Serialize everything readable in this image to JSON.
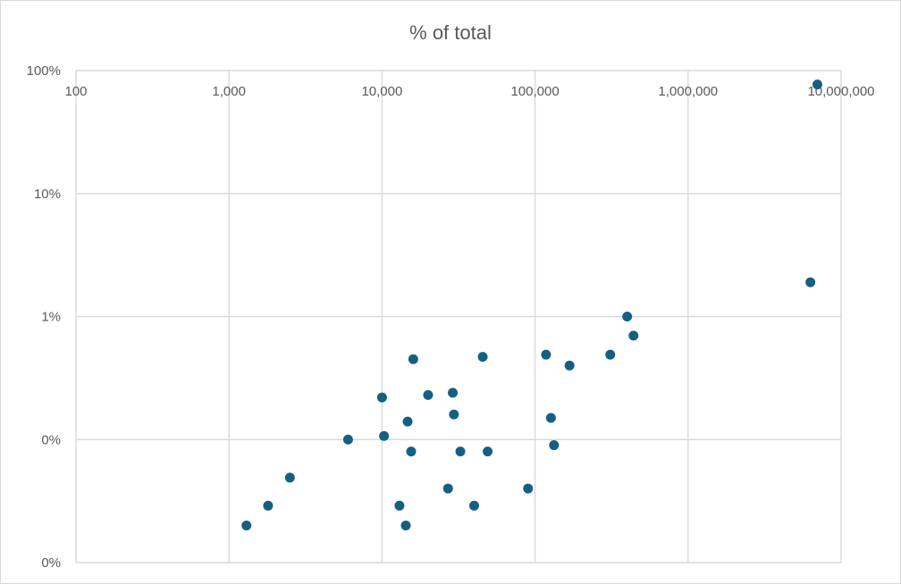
{
  "chart_data": {
    "type": "scatter",
    "title": "% of total",
    "xlabel": "",
    "ylabel": "",
    "x_scale": "log",
    "y_scale": "log",
    "xlim": [
      100,
      10000000
    ],
    "ylim": [
      0.0001,
      1
    ],
    "grid": true,
    "x_ticks": [
      {
        "value": 100,
        "label": "100"
      },
      {
        "value": 1000,
        "label": "1,000"
      },
      {
        "value": 10000,
        "label": "10,000"
      },
      {
        "value": 100000,
        "label": "100,000"
      },
      {
        "value": 1000000,
        "label": "1,000,000"
      },
      {
        "value": 10000000,
        "label": "10,000,000"
      }
    ],
    "y_ticks": [
      {
        "value": 1,
        "label": "100%"
      },
      {
        "value": 0.1,
        "label": "10%"
      },
      {
        "value": 0.01,
        "label": "1%"
      },
      {
        "value": 0.001,
        "label": "0%"
      },
      {
        "value": 0.0001,
        "label": "0%"
      }
    ],
    "marker_color": "#156082",
    "gridline_color": "#d9d9d9",
    "series": [
      {
        "points": [
          {
            "x": 1300,
            "y": 0.0002
          },
          {
            "x": 1800,
            "y": 0.00029
          },
          {
            "x": 2500,
            "y": 0.00049
          },
          {
            "x": 6000,
            "y": 0.001
          },
          {
            "x": 10000,
            "y": 0.0022
          },
          {
            "x": 10300,
            "y": 0.00107
          },
          {
            "x": 13000,
            "y": 0.00029
          },
          {
            "x": 14300,
            "y": 0.0002
          },
          {
            "x": 14700,
            "y": 0.0014
          },
          {
            "x": 15500,
            "y": 0.0008
          },
          {
            "x": 16000,
            "y": 0.0045
          },
          {
            "x": 20000,
            "y": 0.0023
          },
          {
            "x": 27000,
            "y": 0.0004
          },
          {
            "x": 29000,
            "y": 0.0024
          },
          {
            "x": 29500,
            "y": 0.0016
          },
          {
            "x": 32500,
            "y": 0.0008
          },
          {
            "x": 40000,
            "y": 0.00029
          },
          {
            "x": 45500,
            "y": 0.0047
          },
          {
            "x": 49000,
            "y": 0.0008
          },
          {
            "x": 90000,
            "y": 0.0004
          },
          {
            "x": 118000,
            "y": 0.0049
          },
          {
            "x": 127000,
            "y": 0.0015
          },
          {
            "x": 133000,
            "y": 0.0009
          },
          {
            "x": 168000,
            "y": 0.004
          },
          {
            "x": 310000,
            "y": 0.0049
          },
          {
            "x": 400000,
            "y": 0.01
          },
          {
            "x": 440000,
            "y": 0.007
          },
          {
            "x": 6300000,
            "y": 0.019
          },
          {
            "x": 7000000,
            "y": 0.77
          }
        ]
      }
    ]
  }
}
